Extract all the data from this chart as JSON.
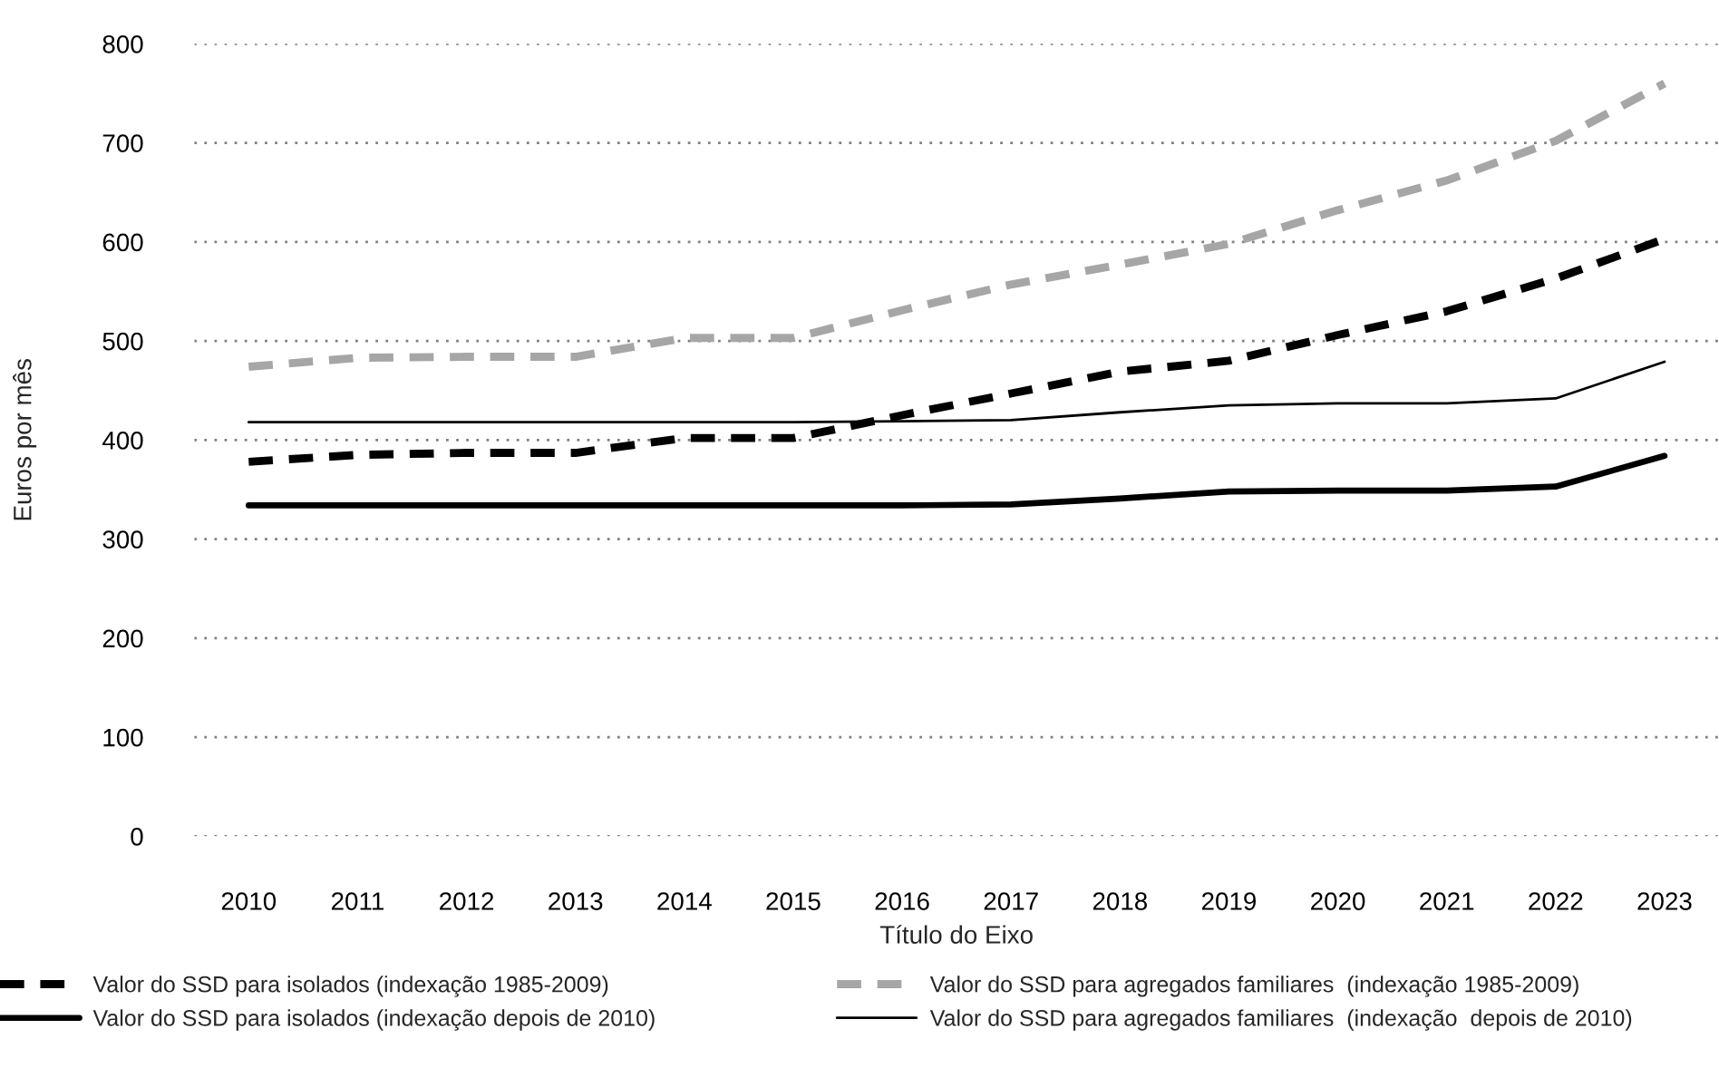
{
  "chart_data": {
    "type": "line",
    "xlabel": "Título do Eixo",
    "ylabel": "Euros por mês",
    "categories": [
      "2010",
      "2011",
      "2012",
      "2013",
      "2014",
      "2015",
      "2016",
      "2017",
      "2018",
      "2019",
      "2020",
      "2021",
      "2022",
      "2023"
    ],
    "series": [
      {
        "name": "Valor do SSD para isolados (indexação 1985-2009)",
        "color": "#000000",
        "line_style": "dashed",
        "values": [
          378,
          385,
          387,
          387,
          402,
          402,
          425,
          447,
          469,
          480,
          506,
          530,
          563,
          603
        ]
      },
      {
        "name": "Valor do SSD para isolados (indexação depois de 2010)",
        "color": "#000000",
        "line_style": "solid",
        "values": [
          334,
          334,
          334,
          334,
          334,
          334,
          334,
          335,
          341,
          348,
          349,
          349,
          353,
          384
        ]
      },
      {
        "name": "Valor do SSD para agregados familiares  (indexação 1985-2009)",
        "color": "#a6a6a6",
        "line_style": "dashed",
        "values": [
          474,
          483,
          484,
          484,
          503,
          503,
          531,
          557,
          577,
          598,
          632,
          662,
          702,
          760
        ]
      },
      {
        "name": "Valor do SSD para agregados familiares  (indexação  depois de 2010)",
        "color": "#000000",
        "line_style": "solid",
        "values": [
          418,
          418,
          418,
          418,
          418,
          418,
          419,
          420,
          428,
          435,
          437,
          437,
          442,
          479
        ]
      }
    ],
    "ylim": [
      0,
      800
    ],
    "yticks": [
      0,
      100,
      200,
      300,
      400,
      500,
      600,
      700,
      800
    ],
    "grid": "y",
    "legend": "bottom",
    "marker": "none"
  }
}
